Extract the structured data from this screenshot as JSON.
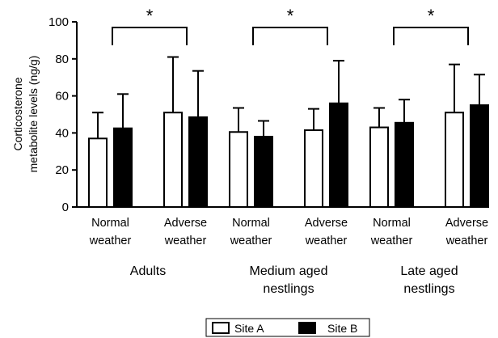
{
  "chart_data": {
    "type": "bar",
    "ylabel_line1": "Corticosterone",
    "ylabel_line2": "metabolite levels (ng/g)",
    "ylim": [
      0,
      100
    ],
    "yticks": [
      "0",
      "20",
      "40",
      "60",
      "80",
      "100"
    ],
    "groups": [
      {
        "label_line1": "Adults",
        "label_line2": "",
        "conditions": [
          {
            "line1": "Normal",
            "line2": "weather"
          },
          {
            "line1": "Adverse",
            "line2": "weather"
          }
        ],
        "significance": "*"
      },
      {
        "label_line1": "Medium aged",
        "label_line2": "nestlings",
        "conditions": [
          {
            "line1": "Normal",
            "line2": "weather"
          },
          {
            "line1": "Adverse",
            "line2": "weather"
          }
        ],
        "significance": "*"
      },
      {
        "label_line1": "Late aged",
        "label_line2": "nestlings",
        "conditions": [
          {
            "line1": "Normal",
            "line2": "weather"
          },
          {
            "line1": "Adverse",
            "line2": "weather"
          }
        ],
        "significance": "*"
      }
    ],
    "series": [
      {
        "name": "Site A",
        "color": "#ffffff",
        "values": [
          37,
          51,
          40.5,
          41.5,
          43,
          51
        ],
        "error_upper": [
          51,
          81,
          53.5,
          53,
          53.5,
          77
        ]
      },
      {
        "name": "Site B",
        "color": "#000000",
        "values": [
          42.5,
          48.5,
          38,
          56,
          45.5,
          55
        ],
        "error_upper": [
          61,
          73.5,
          46.5,
          79,
          58,
          71.5
        ]
      }
    ],
    "legend": {
      "position": "bottom-right"
    },
    "grid": false
  }
}
